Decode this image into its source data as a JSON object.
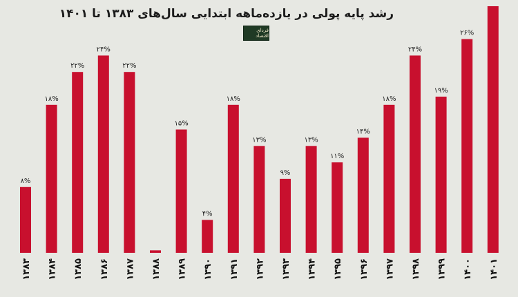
{
  "logo_text": "فردای اقتصاد",
  "chart_data": {
    "type": "bar",
    "title": "رشد پایه پولی در یازده‌ماهه ابتدایی سال‌های ۱۳۸۳ تا ۱۴۰۱",
    "xlabel": "",
    "ylabel": "",
    "ylim": [
      0,
      30
    ],
    "grid": false,
    "legend": "none",
    "bar_color": "#c8102e",
    "categories": [
      "۱۳۸۳",
      "۱۳۸۴",
      "۱۳۸۵",
      "۱۳۸۶",
      "۱۳۸۷",
      "۱۳۸۸",
      "۱۳۸۹",
      "۱۳۹۰",
      "۱۳۹۱",
      "۱۳۹۲",
      "۱۳۹۳",
      "۱۳۹۴",
      "۱۳۹۵",
      "۱۳۹۶",
      "۱۳۹۷",
      "۱۳۹۸",
      "۱۳۹۹",
      "۱۴۰۰",
      "۱۴۰۱"
    ],
    "values": [
      8,
      18,
      22,
      24,
      22,
      0.3,
      15,
      4,
      18,
      13,
      9,
      13,
      11,
      14,
      18,
      24,
      19,
      26,
      30
    ],
    "labels": [
      "۸%",
      "۱۸%",
      "۲۲%",
      "۲۴%",
      "۲۲%",
      "",
      "۱۵%",
      "۴%",
      "۱۸%",
      "۱۳%",
      "۹%",
      "۱۳%",
      "۱۱%",
      "۱۴%",
      "۱۸%",
      "۲۴%",
      "۱۹%",
      "۲۶%",
      ""
    ]
  }
}
